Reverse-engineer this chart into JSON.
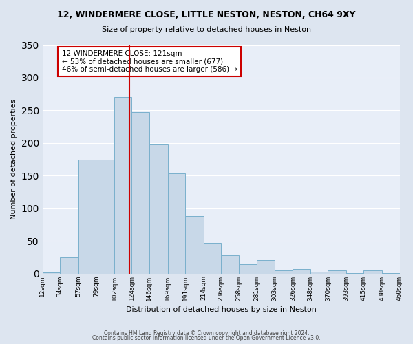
{
  "title": "12, WINDERMERE CLOSE, LITTLE NESTON, NESTON, CH64 9XY",
  "subtitle": "Size of property relative to detached houses in Neston",
  "xlabel": "Distribution of detached houses by size in Neston",
  "ylabel": "Number of detached properties",
  "bar_color": "#c8d8e8",
  "bar_edge_color": "#7ab0cc",
  "background_color": "#e8eef8",
  "grid_color": "#ffffff",
  "bin_edges": [
    12,
    34,
    57,
    79,
    102,
    124,
    146,
    169,
    191,
    214,
    236,
    258,
    281,
    303,
    326,
    348,
    370,
    393,
    415,
    438,
    460
  ],
  "bin_labels": [
    "12sqm",
    "34sqm",
    "57sqm",
    "79sqm",
    "102sqm",
    "124sqm",
    "146sqm",
    "169sqm",
    "191sqm",
    "214sqm",
    "236sqm",
    "258sqm",
    "281sqm",
    "303sqm",
    "326sqm",
    "348sqm",
    "370sqm",
    "393sqm",
    "415sqm",
    "438sqm",
    "460sqm"
  ],
  "counts": [
    2,
    25,
    175,
    175,
    270,
    247,
    198,
    153,
    88,
    47,
    28,
    14,
    21,
    5,
    7,
    3,
    5,
    1,
    5,
    1
  ],
  "property_size": 121,
  "vline_color": "#cc0000",
  "annotation_text": "12 WINDERMERE CLOSE: 121sqm\n← 53% of detached houses are smaller (677)\n46% of semi-detached houses are larger (586) →",
  "annotation_box_color": "#ffffff",
  "annotation_box_edge_color": "#cc0000",
  "ylim": [
    0,
    350
  ],
  "yticks": [
    0,
    50,
    100,
    150,
    200,
    250,
    300,
    350
  ],
  "footer1": "Contains HM Land Registry data © Crown copyright and database right 2024.",
  "footer2": "Contains public sector information licensed under the Open Government Licence v3.0."
}
